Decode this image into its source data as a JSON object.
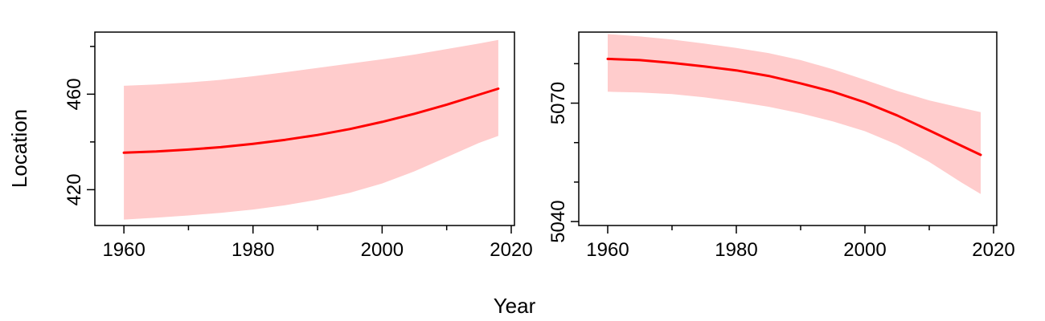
{
  "chart_data": {
    "type": "line",
    "xlabel": "Year",
    "ylabel": "Location",
    "colors": {
      "line": "#ff0000",
      "band": "#ffcccc"
    },
    "panels": [
      {
        "xlim": [
          1955.5,
          2020.5
        ],
        "ylim": [
          405,
          486
        ],
        "xticks": [
          1960,
          1980,
          2000,
          2020
        ],
        "xticks_minor": [
          1970,
          1990,
          2010
        ],
        "yticks": [
          420,
          460
        ],
        "yticks_minor": [
          440,
          480
        ],
        "series": [
          {
            "x": [
              1960,
              1965,
              1970,
              1975,
              1980,
              1985,
              1990,
              1995,
              2000,
              2005,
              2010,
              2015,
              2018
            ],
            "y": [
              435.5,
              436,
              436.8,
              437.8,
              439.2,
              440.9,
              442.9,
              445.4,
              448.4,
              451.8,
              455.6,
              459.8,
              462.3
            ],
            "lower": [
              407.5,
              408.3,
              409.2,
              410.3,
              411.7,
              413.5,
              415.8,
              418.7,
              422.6,
              427.7,
              433.6,
              439.6,
              442.5
            ],
            "upper": [
              463.5,
              464.1,
              464.9,
              466,
              467.5,
              469.2,
              471,
              472.8,
              474.6,
              476.6,
              478.9,
              481.2,
              482.7
            ]
          }
        ]
      },
      {
        "xlim": [
          1955.5,
          2020.5
        ],
        "ylim": [
          5039,
          5088
        ],
        "xticks": [
          1960,
          1980,
          2000,
          2020
        ],
        "xticks_minor": [
          1970,
          1990,
          2010
        ],
        "yticks": [
          5040,
          5070
        ],
        "yticks_minor": [
          5050,
          5060,
          5080
        ],
        "series": [
          {
            "x": [
              1960,
              1965,
              1970,
              1975,
              1980,
              1985,
              1990,
              1995,
              2000,
              2005,
              2010,
              2015,
              2018
            ],
            "y": [
              5081.2,
              5080.9,
              5080.2,
              5079.3,
              5078.3,
              5076.9,
              5075,
              5072.9,
              5070.2,
              5066.9,
              5063.1,
              5059.2,
              5056.9
            ],
            "lower": [
              5072.9,
              5072.7,
              5072.3,
              5071.5,
              5070.4,
              5069.1,
              5067.4,
              5065.4,
              5062.9,
              5059.5,
              5055.1,
              5049.9,
              5047
            ],
            "upper": [
              5087.5,
              5086.9,
              5086.1,
              5085.1,
              5084,
              5082.7,
              5080.9,
              5078.6,
              5075.9,
              5073.1,
              5070.7,
              5068.8,
              5067.7
            ]
          }
        ]
      }
    ]
  }
}
